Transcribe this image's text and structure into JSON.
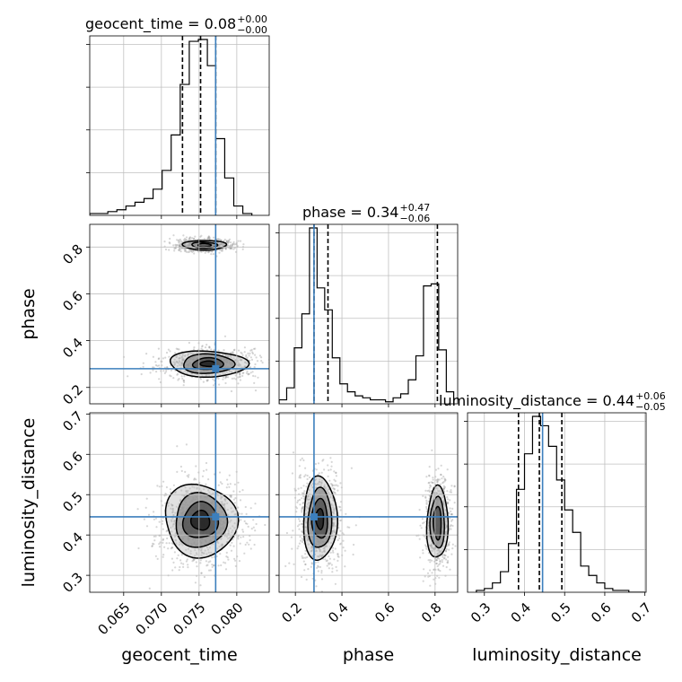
{
  "chart_data": {
    "type": "corner",
    "parameters": [
      "geocent_time",
      "phase",
      "luminosity_distance"
    ],
    "truth_color": "#3c7fbd",
    "titles": [
      {
        "param": "geocent_time",
        "prefix": "geocent_time = 0.08",
        "plus": "+0.00",
        "minus": "−0.00"
      },
      {
        "param": "phase",
        "prefix": "phase = 0.34",
        "plus": "+0.47",
        "minus": "−0.06"
      },
      {
        "param": "luminosity_distance",
        "prefix": "luminosity_distance = 0.44",
        "plus": "+0.06",
        "minus": "−0.05"
      }
    ],
    "axes": {
      "geocent_time": {
        "label": "geocent_time",
        "range": [
          0.0605,
          0.0843
        ],
        "ticks": [
          0.065,
          0.07,
          0.075,
          0.08
        ],
        "tick_labels": [
          "0.065",
          "0.070",
          "0.075",
          "0.080"
        ],
        "truth": 0.0772,
        "quantiles": [
          0.0728,
          0.0752,
          0.0772
        ]
      },
      "phase": {
        "label": "phase",
        "range": [
          0.13,
          0.897
        ],
        "ticks": [
          0.2,
          0.4,
          0.6,
          0.8
        ],
        "tick_labels": [
          "0.2",
          "0.4",
          "0.6",
          "0.8"
        ],
        "truth": 0.28,
        "quantiles": [
          0.28,
          0.34,
          0.81
        ]
      },
      "luminosity_distance": {
        "label": "luminosity_distance",
        "range": [
          0.258,
          0.703
        ],
        "ticks": [
          0.3,
          0.4,
          0.5,
          0.6,
          0.7
        ],
        "tick_labels": [
          "0.3",
          "0.4",
          "0.5",
          "0.6",
          "0.7"
        ],
        "truth": 0.445,
        "quantiles": [
          0.385,
          0.437,
          0.493
        ]
      }
    },
    "histograms": {
      "geocent_time": {
        "edges": [
          0.0605,
          0.0617,
          0.0629,
          0.0641,
          0.0653,
          0.0665,
          0.0677,
          0.0689,
          0.0701,
          0.0713,
          0.0725,
          0.0737,
          0.0749,
          0.0761,
          0.0772,
          0.0784,
          0.0796,
          0.0808,
          0.082
        ],
        "counts": [
          0.01,
          0.01,
          0.02,
          0.03,
          0.05,
          0.07,
          0.09,
          0.14,
          0.24,
          0.43,
          0.7,
          0.93,
          0.94,
          0.8,
          0.41,
          0.2,
          0.05,
          0.01
        ]
      },
      "phase": {
        "edges": [
          0.13,
          0.1626,
          0.1953,
          0.2279,
          0.2606,
          0.2932,
          0.3259,
          0.3585,
          0.3912,
          0.4238,
          0.4565,
          0.4891,
          0.5218,
          0.5544,
          0.5871,
          0.6197,
          0.6524,
          0.685,
          0.7177,
          0.7503,
          0.783,
          0.8156,
          0.8483,
          0.88
        ],
        "counts": [
          0.02,
          0.08,
          0.28,
          0.45,
          0.88,
          0.58,
          0.47,
          0.23,
          0.1,
          0.06,
          0.04,
          0.03,
          0.02,
          0.02,
          0.01,
          0.03,
          0.05,
          0.12,
          0.24,
          0.59,
          0.6,
          0.27,
          0.06
        ]
      },
      "luminosity_distance": {
        "edges": [
          0.28,
          0.3,
          0.32,
          0.34,
          0.36,
          0.38,
          0.4,
          0.42,
          0.44,
          0.46,
          0.48,
          0.5,
          0.52,
          0.54,
          0.56,
          0.58,
          0.6,
          0.62,
          0.64,
          0.66,
          0.68,
          0.7
        ],
        "counts": [
          0.01,
          0.02,
          0.05,
          0.11,
          0.26,
          0.55,
          0.74,
          0.94,
          0.89,
          0.78,
          0.6,
          0.44,
          0.32,
          0.14,
          0.09,
          0.05,
          0.02,
          0.01,
          0.01,
          0.0,
          0.0
        ]
      }
    },
    "contours_2d": [
      {
        "x": "geocent_time",
        "y": "phase",
        "modes": [
          {
            "center": [
              0.0757,
              0.808
            ],
            "levels": [
              [
                0.0028,
                0.021
              ],
              [
                0.0017,
                0.013
              ],
              [
                0.0009,
                0.007
              ]
            ]
          },
          {
            "center": [
              0.0762,
              0.301
            ],
            "levels": [
              [
                0.0052,
                0.055
              ],
              [
                0.0035,
                0.04
              ],
              [
                0.002,
                0.025
              ],
              [
                0.001,
                0.012
              ]
            ]
          }
        ]
      },
      {
        "x": "geocent_time",
        "y": "luminosity_distance",
        "modes": [
          {
            "center": [
              0.0752,
              0.436
            ],
            "levels": [
              [
                0.0048,
                0.09
              ],
              [
                0.0035,
                0.065
              ],
              [
                0.0023,
                0.045
              ],
              [
                0.0012,
                0.025
              ]
            ]
          }
        ]
      },
      {
        "x": "phase",
        "y": "luminosity_distance",
        "modes": [
          {
            "center": [
              0.305,
              0.44
            ],
            "levels": [
              [
                0.075,
                0.1
              ],
              [
                0.05,
                0.075
              ],
              [
                0.033,
                0.05
              ],
              [
                0.017,
                0.025
              ]
            ]
          },
          {
            "center": [
              0.81,
              0.43
            ],
            "levels": [
              [
                0.045,
                0.09
              ],
              [
                0.03,
                0.065
              ],
              [
                0.017,
                0.04
              ]
            ]
          }
        ]
      }
    ],
    "grid": true,
    "legend": "none"
  }
}
